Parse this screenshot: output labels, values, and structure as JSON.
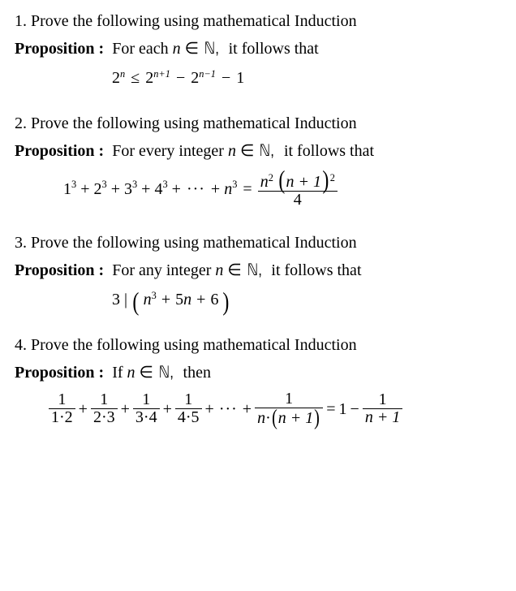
{
  "text_color": "#000000",
  "background_color": "#ffffff",
  "base_font_family": "Times New Roman",
  "base_font_size_pt": 15,
  "problems": [
    {
      "number": "1.",
      "prompt": "Prove the following using mathematical Induction",
      "prop_label": "Proposition :",
      "prop_pretext": "For each",
      "prop_var": "n",
      "prop_setrel": "∈",
      "prop_set": "ℕ,",
      "prop_posttext": "it follows that",
      "formula": {
        "type": "inequality",
        "lhs_base": "2",
        "lhs_exp": "n",
        "rel": "≤",
        "t1_base": "2",
        "t1_exp": "n+1",
        "minus1": "−",
        "t2_base": "2",
        "t2_exp": "n−1",
        "minus2": "−",
        "t3": "1"
      }
    },
    {
      "number": "2.",
      "prompt": "Prove the following using mathematical Induction",
      "prop_label": "Proposition :",
      "prop_pretext": "For every integer",
      "prop_var": "n",
      "prop_setrel": "∈",
      "prop_set": "ℕ,",
      "prop_posttext": "it follows that",
      "formula": {
        "type": "sum_cubes",
        "terms": [
          "1",
          "2",
          "3",
          "4"
        ],
        "exp": "3",
        "dots": "···",
        "last_base": "n",
        "eq": "=",
        "frac_num_a_base": "n",
        "frac_num_a_exp": "2",
        "frac_num_paren_inner": "n + 1",
        "frac_num_paren_exp": "2",
        "frac_den": "4"
      }
    },
    {
      "number": "3.",
      "prompt": "Prove the following using mathematical Induction",
      "prop_label": "Proposition :",
      "prop_pretext": "For any integer",
      "prop_var": "n",
      "prop_setrel": "∈",
      "prop_set": "ℕ,",
      "prop_posttext": "it follows that",
      "formula": {
        "type": "divides",
        "divisor": "3",
        "divsym": "|",
        "inner_a_base": "n",
        "inner_a_exp": "3",
        "inner_plus1": "+",
        "inner_b": "5n",
        "inner_plus2": "+",
        "inner_c": "6"
      }
    },
    {
      "number": "4.",
      "prompt": "Prove the following using mathematical Induction",
      "prop_label": "Proposition :",
      "prop_pretext": "If",
      "prop_var": "n",
      "prop_setrel": "∈",
      "prop_set": "ℕ,",
      "prop_posttext": "then",
      "formula": {
        "type": "telescoping",
        "unit_num": "1",
        "denoms": [
          "1·2",
          "2·3",
          "3·4",
          "4·5"
        ],
        "plus": "+",
        "dots": "···",
        "last_den_a": "n",
        "last_den_dot": "·",
        "last_den_b_inner": "n + 1",
        "eq": "=",
        "rhs_one": "1",
        "rhs_minus": "−",
        "rhs_frac_num": "1",
        "rhs_frac_den": "n + 1"
      }
    }
  ]
}
